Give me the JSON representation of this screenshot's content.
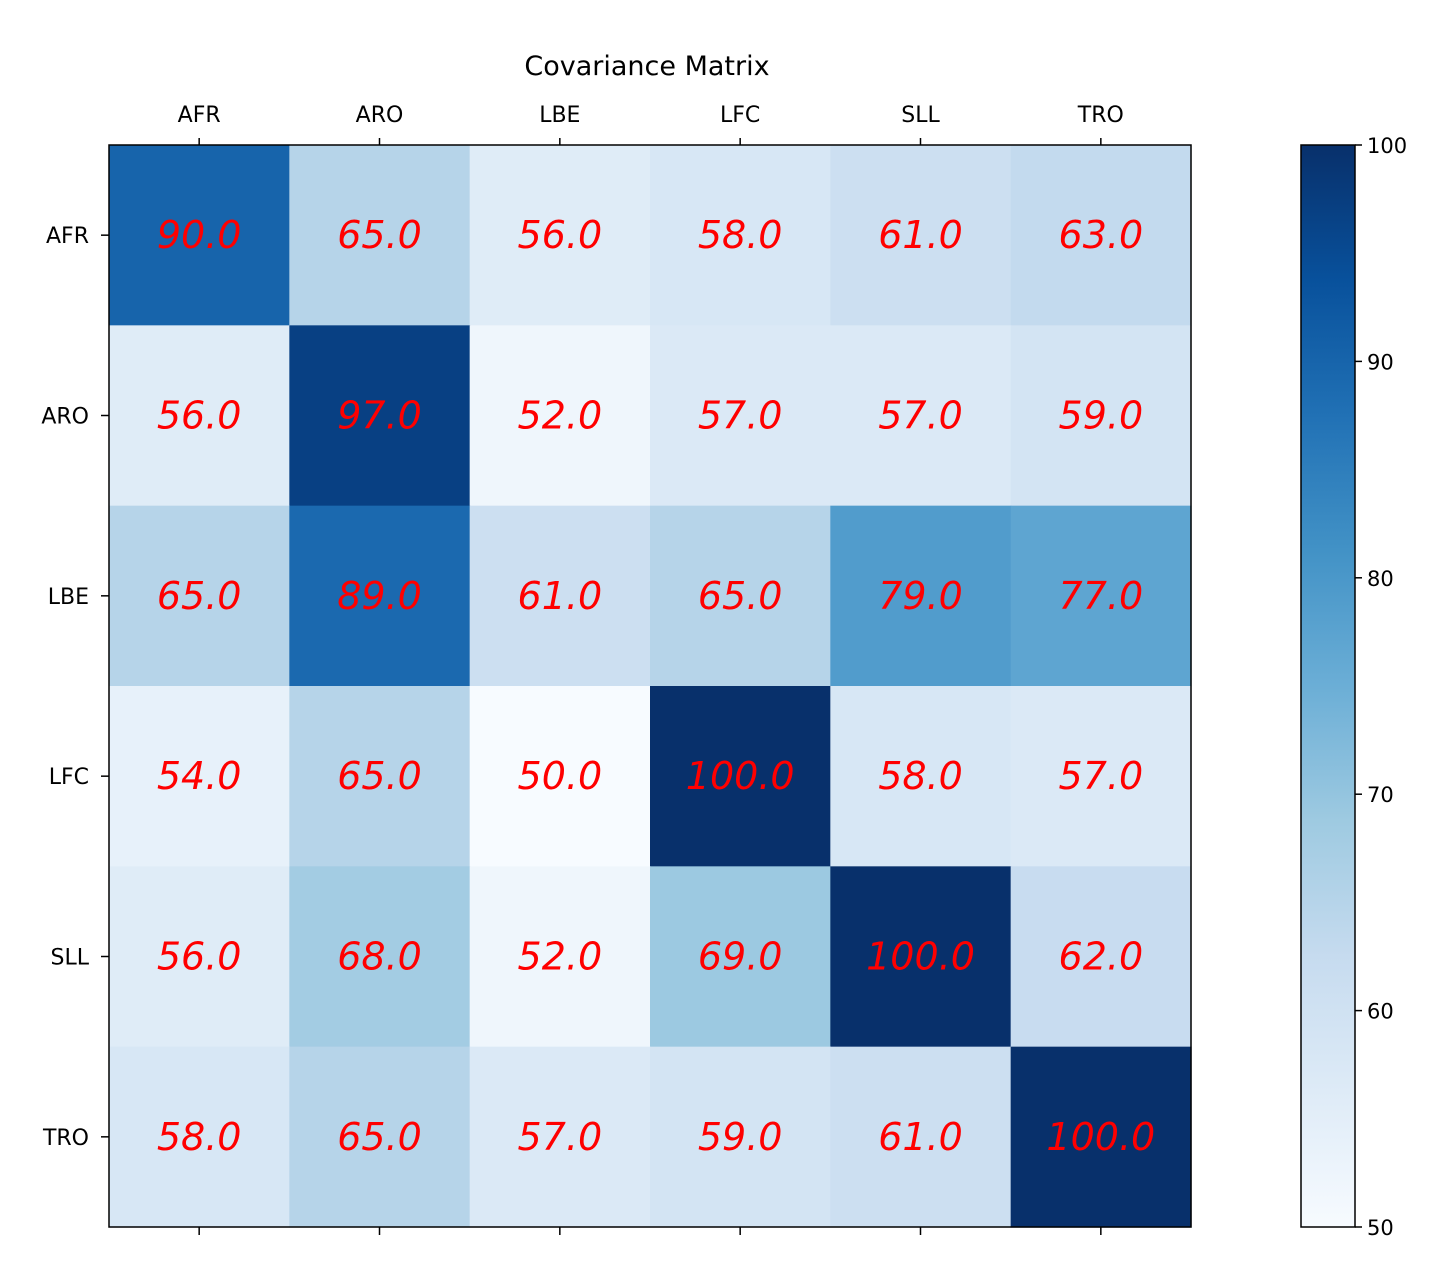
{
  "chart_data": {
    "type": "heatmap",
    "title": "Covariance Matrix",
    "x_categories": [
      "AFR",
      "ARO",
      "LBE",
      "LFC",
      "SLL",
      "TRO"
    ],
    "y_categories": [
      "AFR",
      "ARO",
      "LBE",
      "LFC",
      "SLL",
      "TRO"
    ],
    "values": [
      [
        90.0,
        65.0,
        56.0,
        58.0,
        61.0,
        63.0
      ],
      [
        56.0,
        97.0,
        52.0,
        57.0,
        57.0,
        59.0
      ],
      [
        65.0,
        89.0,
        61.0,
        65.0,
        79.0,
        77.0
      ],
      [
        54.0,
        65.0,
        50.0,
        100.0,
        58.0,
        57.0
      ],
      [
        56.0,
        68.0,
        52.0,
        69.0,
        100.0,
        62.0
      ],
      [
        58.0,
        65.0,
        57.0,
        59.0,
        61.0,
        100.0
      ]
    ],
    "cell_labels": [
      [
        "90.0",
        "65.0",
        "56.0",
        "58.0",
        "61.0",
        "63.0"
      ],
      [
        "56.0",
        "97.0",
        "52.0",
        "57.0",
        "57.0",
        "59.0"
      ],
      [
        "65.0",
        "89.0",
        "61.0",
        "65.0",
        "79.0",
        "77.0"
      ],
      [
        "54.0",
        "65.0",
        "50.0",
        "100.0",
        "58.0",
        "57.0"
      ],
      [
        "56.0",
        "68.0",
        "52.0",
        "69.0",
        "100.0",
        "62.0"
      ],
      [
        "58.0",
        "65.0",
        "57.0",
        "59.0",
        "61.0",
        "100.0"
      ]
    ],
    "colormap": "Blues",
    "colorbar": {
      "min": 50,
      "max": 100,
      "ticks": [
        50,
        60,
        70,
        80,
        90,
        100
      ],
      "tick_labels": [
        "50",
        "60",
        "70",
        "80",
        "90",
        "100"
      ],
      "placement": "right"
    },
    "xaxis_position": "top",
    "annotation_color": "#ff0000",
    "grid": false
  }
}
